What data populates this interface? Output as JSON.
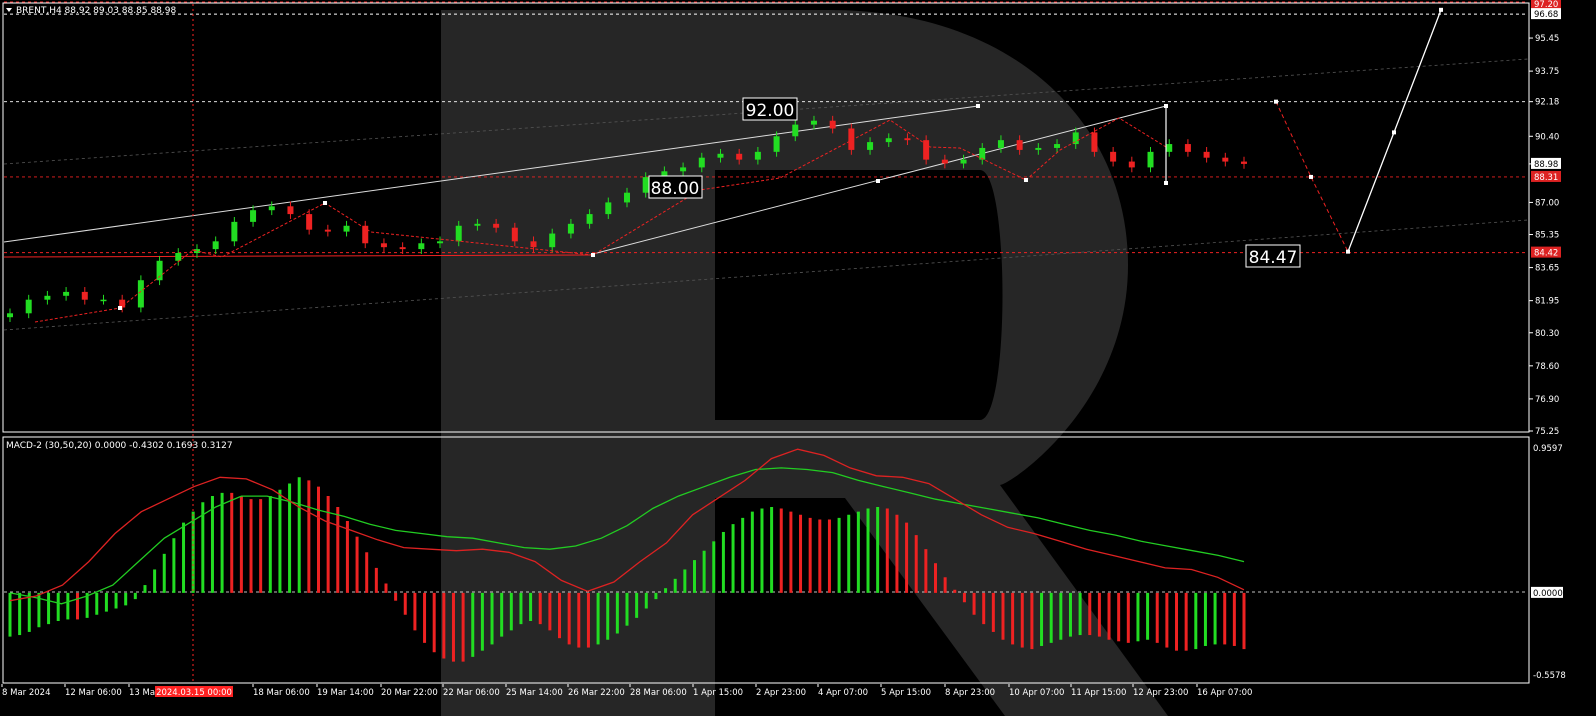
{
  "colors": {
    "background": "#000000",
    "bull": "#22dd22",
    "bear": "#ee2222",
    "frame": "#ffffff",
    "axis_text": "#ffffff",
    "signal_line": "#22cc22",
    "macd_line": "#dd2222",
    "watermark": "#262626"
  },
  "header": {
    "symbol_info": "BRENT,H4  88.92 89.03 88.85 88.98",
    "macd_info": "MACD-2 (30,50,20) 0.0000 -0.4302 0.1693 0.3127"
  },
  "annotations": {
    "level_high": "92.00",
    "level_mid": "88.00",
    "level_low": "84.47"
  },
  "price_axis": {
    "ticks": [
      "95.45",
      "93.75",
      "92.18",
      "90.40",
      "88.98",
      "87.00",
      "85.35",
      "83.65",
      "81.95",
      "80.30",
      "78.60",
      "76.90",
      "75.25"
    ],
    "top_label": "97.20",
    "second_label": "96.68",
    "current_label": "88.98",
    "red_label_1": "88.31",
    "red_label_2": "84.42"
  },
  "macd_axis": {
    "ticks": [
      "0.9597",
      "0.0000",
      "-0.5578"
    ]
  },
  "time_axis": {
    "labels": [
      "8 Mar 2024",
      "12 Mar 06:00",
      "13 Ma",
      "18 Mar 06:00",
      "19 Mar 14:00",
      "20 Mar 22:00",
      "22 Mar 06:00",
      "25 Mar 14:00",
      "26 Mar 22:00",
      "28 Mar 06:00",
      "1 Apr 15:00",
      "2 Apr 23:00",
      "4 Apr 07:00",
      "5 Apr 15:00",
      "8 Apr 23:00",
      "10 Apr 07:00",
      "11 Apr 15:00",
      "12 Apr 23:00",
      "16 Apr 07:00"
    ],
    "crosshair_label": "2024.03.15 00:00"
  },
  "chart_data": [
    {
      "type": "candlestick",
      "title": "BRENT,H4",
      "x": [
        "8 Mar 2024",
        "12 Mar 06:00",
        "13 Ma",
        "18 Mar 06:00",
        "19 Mar 14:00",
        "20 Mar 22:00",
        "22 Mar 06:00",
        "25 Mar 14:00",
        "26 Mar 22:00",
        "28 Mar 06:00",
        "1 Apr 15:00",
        "2 Apr 23:00",
        "4 Apr 07:00",
        "5 Apr 15:00",
        "8 Apr 23:00",
        "10 Apr 07:00",
        "11 Apr 15:00",
        "12 Apr 23:00",
        "16 Apr 07:00"
      ],
      "ylim": [
        75.25,
        97.2
      ],
      "close_path": [
        81.3,
        82.0,
        82.2,
        82.4,
        82.0,
        82.0,
        81.6,
        83.0,
        84.0,
        84.4,
        84.6,
        85.0,
        86.0,
        86.6,
        86.8,
        86.4,
        85.6,
        85.5,
        85.8,
        84.9,
        84.7,
        84.6,
        84.9,
        85.0,
        85.8,
        85.9,
        85.7,
        85.0,
        84.7,
        85.4,
        85.9,
        86.4,
        87.0,
        87.5,
        88.3,
        88.6,
        88.8,
        89.3,
        89.5,
        89.2,
        89.6,
        90.4,
        91.0,
        91.2,
        90.8,
        89.7,
        90.1,
        90.3,
        90.2,
        89.2,
        89.0,
        89.2,
        89.8,
        90.2,
        89.7,
        89.8,
        90.0,
        90.6,
        89.6,
        89.1,
        88.8,
        89.6,
        90.0,
        89.6,
        89.3,
        89.1,
        88.98
      ],
      "horizontal_levels": [
        92.18,
        88.31,
        84.42
      ],
      "forecast_path": [
        92.18,
        88.31,
        84.47,
        90.6,
        96.9
      ]
    },
    {
      "type": "macd",
      "title": "MACD-2 (30,50,20)",
      "params": [
        30,
        50,
        20
      ],
      "ylim": [
        -0.5578,
        0.9597
      ],
      "histogram": [
        -0.28,
        -0.27,
        -0.25,
        -0.22,
        -0.2,
        -0.18,
        -0.17,
        -0.17,
        -0.16,
        -0.14,
        -0.12,
        -0.1,
        -0.08,
        -0.04,
        0.05,
        0.15,
        0.25,
        0.35,
        0.45,
        0.52,
        0.58,
        0.62,
        0.64,
        0.64,
        0.62,
        0.6,
        0.6,
        0.62,
        0.66,
        0.7,
        0.74,
        0.72,
        0.68,
        0.62,
        0.55,
        0.46,
        0.36,
        0.26,
        0.16,
        0.06,
        -0.05,
        -0.14,
        -0.24,
        -0.32,
        -0.38,
        -0.42,
        -0.44,
        -0.44,
        -0.41,
        -0.37,
        -0.33,
        -0.28,
        -0.24,
        -0.2,
        -0.18,
        -0.2,
        -0.24,
        -0.29,
        -0.33,
        -0.35,
        -0.35,
        -0.33,
        -0.3,
        -0.26,
        -0.21,
        -0.16,
        -0.1,
        -0.04,
        0.03,
        0.09,
        0.15,
        0.21,
        0.27,
        0.33,
        0.39,
        0.44,
        0.48,
        0.52,
        0.54,
        0.55,
        0.54,
        0.52,
        0.5,
        0.48,
        0.47,
        0.47,
        0.48,
        0.5,
        0.52,
        0.54,
        0.55,
        0.54,
        0.5,
        0.45,
        0.37,
        0.28,
        0.19,
        0.1,
        0.02,
        -0.06,
        -0.14,
        -0.2,
        -0.25,
        -0.3,
        -0.33,
        -0.35,
        -0.36,
        -0.34,
        -0.32,
        -0.3,
        -0.28,
        -0.27,
        -0.27,
        -0.28,
        -0.3,
        -0.31,
        -0.32,
        -0.31,
        -0.3,
        -0.32,
        -0.35,
        -0.37,
        -0.37,
        -0.36,
        -0.34,
        -0.33,
        -0.33,
        -0.34,
        -0.36
      ],
      "macd_line": [
        -0.05,
        -0.02,
        0.05,
        0.2,
        0.38,
        0.52,
        0.6,
        0.68,
        0.74,
        0.73,
        0.66,
        0.55,
        0.46,
        0.4,
        0.34,
        0.29,
        0.28,
        0.27,
        0.28,
        0.26,
        0.2,
        0.08,
        0.01,
        0.07,
        0.2,
        0.32,
        0.5,
        0.61,
        0.72,
        0.86,
        0.92,
        0.88,
        0.8,
        0.75,
        0.74,
        0.7,
        0.6,
        0.5,
        0.42,
        0.38,
        0.33,
        0.28,
        0.24,
        0.2,
        0.16,
        0.15,
        0.1,
        0.02
      ],
      "signal_line": [
        0.0,
        -0.03,
        -0.07,
        -0.02,
        0.05,
        0.2,
        0.35,
        0.45,
        0.55,
        0.62,
        0.62,
        0.58,
        0.53,
        0.49,
        0.44,
        0.4,
        0.38,
        0.36,
        0.35,
        0.32,
        0.29,
        0.28,
        0.3,
        0.35,
        0.43,
        0.54,
        0.62,
        0.68,
        0.74,
        0.79,
        0.8,
        0.79,
        0.77,
        0.72,
        0.68,
        0.64,
        0.6,
        0.57,
        0.54,
        0.51,
        0.48,
        0.44,
        0.4,
        0.37,
        0.33,
        0.3,
        0.27,
        0.24,
        0.2
      ]
    }
  ]
}
